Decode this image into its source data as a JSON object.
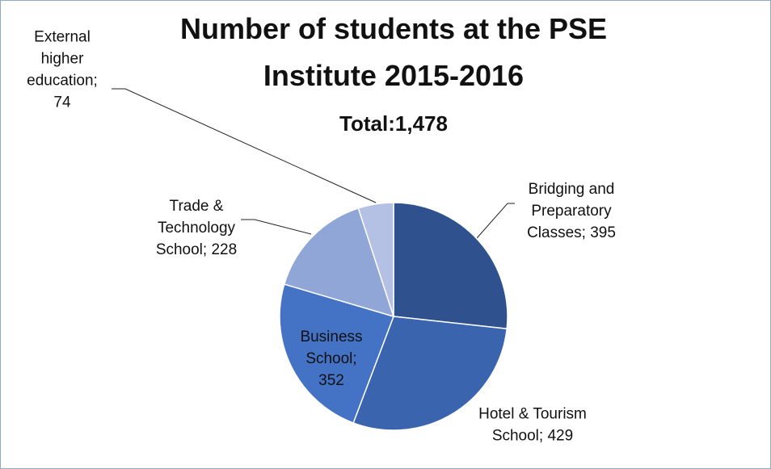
{
  "chart_data": {
    "type": "pie",
    "title": "Number of students at the PSE Institute 2015-2016",
    "subtitle": "Total:1,478",
    "values": [
      395,
      429,
      352,
      228,
      74
    ],
    "value_labels": [
      "Bridging and Preparatory Classes; 395",
      "Hotel & Tourism School; 429",
      "Business School; 352",
      "Trade & Technology School; 228",
      "External higher education; 74"
    ],
    "colors": [
      "#2f528f",
      "#3a65ae",
      "#4472c4",
      "#8fa6d6",
      "#b4c0e4"
    ]
  }
}
